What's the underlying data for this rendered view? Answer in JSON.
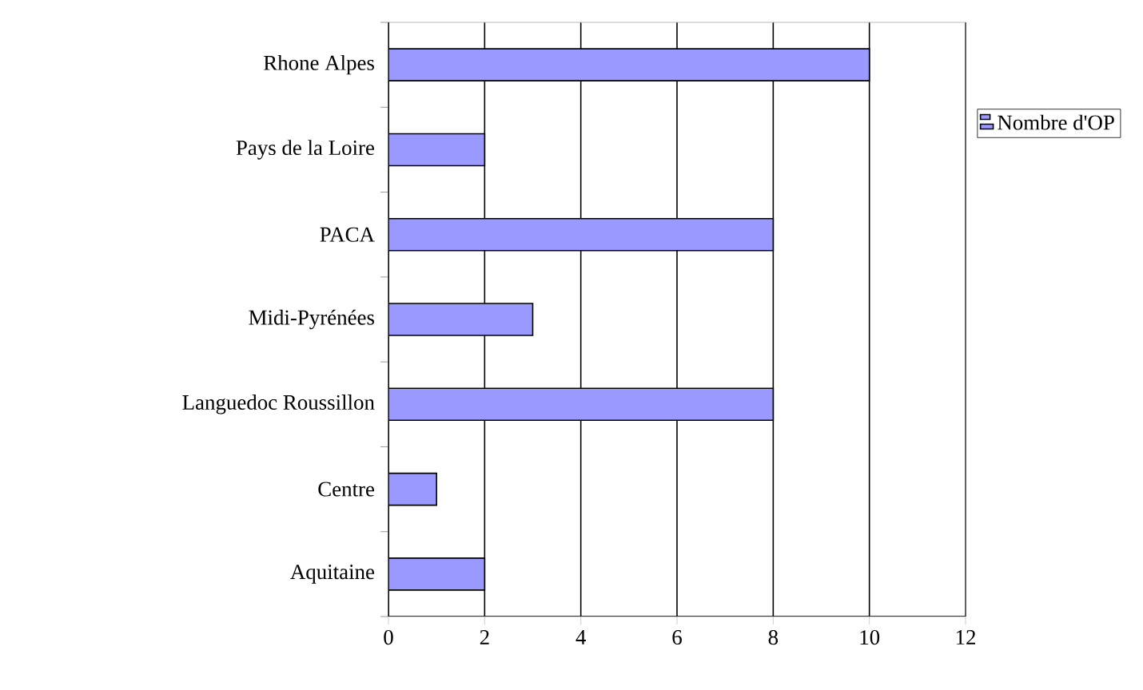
{
  "chart_data": {
    "type": "bar",
    "orientation": "horizontal",
    "categories": [
      "Rhone Alpes",
      "Pays de la Loire",
      "PACA",
      "Midi-Pyrénées",
      "Languedoc Roussillon",
      "Centre",
      "Aquitaine"
    ],
    "series": [
      {
        "name": "Nombre d'OP",
        "color": "#9999ff",
        "values": [
          10,
          2,
          8,
          3,
          8,
          1,
          2
        ]
      }
    ],
    "xlim": [
      0,
      12
    ],
    "xticks": [
      0,
      2,
      4,
      6,
      8,
      10,
      12
    ],
    "grid": "x",
    "legend": "right"
  }
}
